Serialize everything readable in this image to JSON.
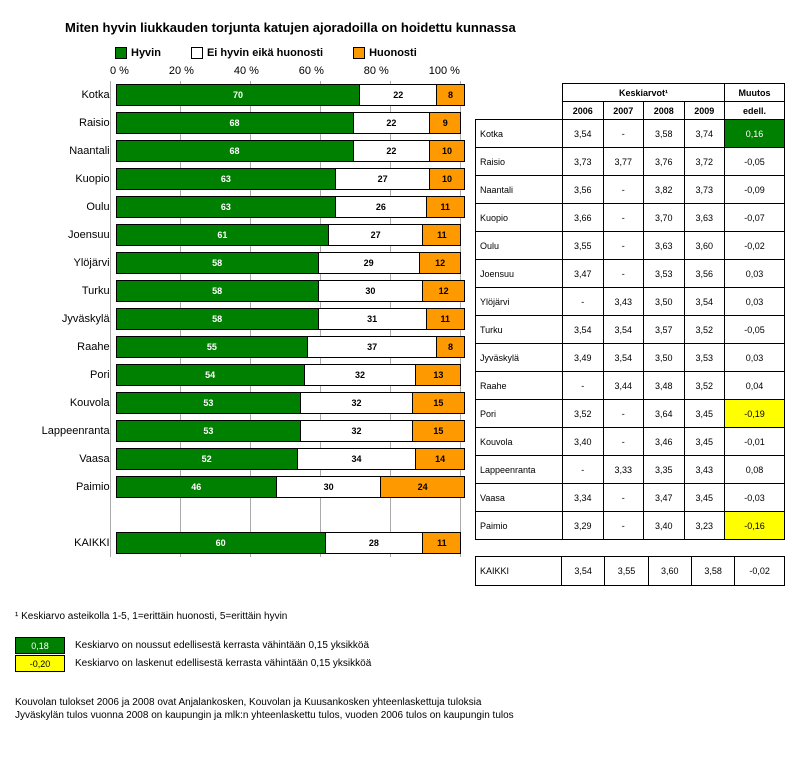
{
  "title": "Miten hyvin liukkauden torjunta katujen ajoradoilla on hoidettu kunnassa",
  "colors": {
    "green": "#008000",
    "white": "#ffffff",
    "orange": "#ff9900",
    "yellow": "#ffff00"
  },
  "legend": {
    "items": [
      {
        "label": "Hyvin",
        "color": "#008000"
      },
      {
        "label": "Ei hyvin eikä huonosti",
        "color": "#ffffff"
      },
      {
        "label": "Huonosti",
        "color": "#ff9900"
      }
    ]
  },
  "axis": {
    "ticks": [
      "0 %",
      "20 %",
      "40 %",
      "60 %",
      "80 %",
      "100 %"
    ],
    "positions": [
      0,
      20,
      40,
      60,
      80,
      100
    ]
  },
  "rows": [
    {
      "name": "Kotka",
      "values": [
        70,
        22,
        8
      ]
    },
    {
      "name": "Raisio",
      "values": [
        68,
        22,
        9
      ]
    },
    {
      "name": "Naantali",
      "values": [
        68,
        22,
        10
      ]
    },
    {
      "name": "Kuopio",
      "values": [
        63,
        27,
        10
      ]
    },
    {
      "name": "Oulu",
      "values": [
        63,
        26,
        11
      ]
    },
    {
      "name": "Joensuu",
      "values": [
        61,
        27,
        11
      ]
    },
    {
      "name": "Ylöjärvi",
      "values": [
        58,
        29,
        12
      ]
    },
    {
      "name": "Turku",
      "values": [
        58,
        30,
        12
      ]
    },
    {
      "name": "Jyväskylä",
      "values": [
        58,
        31,
        11
      ]
    },
    {
      "name": "Raahe",
      "values": [
        55,
        37,
        8
      ]
    },
    {
      "name": "Pori",
      "values": [
        54,
        32,
        13
      ]
    },
    {
      "name": "Kouvola",
      "values": [
        53,
        32,
        15
      ]
    },
    {
      "name": "Lappeenranta",
      "values": [
        53,
        32,
        15
      ]
    },
    {
      "name": "Vaasa",
      "values": [
        52,
        34,
        14
      ]
    },
    {
      "name": "Paimio",
      "values": [
        46,
        30,
        24
      ]
    }
  ],
  "kaikki": {
    "name": "KAIKKI",
    "values": [
      60,
      28,
      11
    ]
  },
  "table": {
    "header_group1": "Keskiarvot¹",
    "header_group2": "Muutos",
    "cols": [
      "2006",
      "2007",
      "2008",
      "2009",
      "edell."
    ],
    "rows": [
      {
        "name": "Kotka",
        "cells": [
          "3,54",
          "-",
          "3,58",
          "3,74",
          "0,16"
        ],
        "hl": "green"
      },
      {
        "name": "Raisio",
        "cells": [
          "3,73",
          "3,77",
          "3,76",
          "3,72",
          "-0,05"
        ],
        "hl": null
      },
      {
        "name": "Naantali",
        "cells": [
          "3,56",
          "-",
          "3,82",
          "3,73",
          "-0,09"
        ],
        "hl": null
      },
      {
        "name": "Kuopio",
        "cells": [
          "3,66",
          "-",
          "3,70",
          "3,63",
          "-0,07"
        ],
        "hl": null
      },
      {
        "name": "Oulu",
        "cells": [
          "3,55",
          "-",
          "3,63",
          "3,60",
          "-0,02"
        ],
        "hl": null
      },
      {
        "name": "Joensuu",
        "cells": [
          "3,47",
          "-",
          "3,53",
          "3,56",
          "0,03"
        ],
        "hl": null
      },
      {
        "name": "Ylöjärvi",
        "cells": [
          "-",
          "3,43",
          "3,50",
          "3,54",
          "0,03"
        ],
        "hl": null
      },
      {
        "name": "Turku",
        "cells": [
          "3,54",
          "3,54",
          "3,57",
          "3,52",
          "-0,05"
        ],
        "hl": null
      },
      {
        "name": "Jyväskylä",
        "cells": [
          "3,49",
          "3,54",
          "3,50",
          "3,53",
          "0,03"
        ],
        "hl": null
      },
      {
        "name": "Raahe",
        "cells": [
          "-",
          "3,44",
          "3,48",
          "3,52",
          "0,04"
        ],
        "hl": null
      },
      {
        "name": "Pori",
        "cells": [
          "3,52",
          "-",
          "3,64",
          "3,45",
          "-0,19"
        ],
        "hl": "yellow"
      },
      {
        "name": "Kouvola",
        "cells": [
          "3,40",
          "-",
          "3,46",
          "3,45",
          "-0,01"
        ],
        "hl": null
      },
      {
        "name": "Lappeenranta",
        "cells": [
          "-",
          "3,33",
          "3,35",
          "3,43",
          "0,08"
        ],
        "hl": null
      },
      {
        "name": "Vaasa",
        "cells": [
          "3,34",
          "-",
          "3,47",
          "3,45",
          "-0,03"
        ],
        "hl": null
      },
      {
        "name": "Paimio",
        "cells": [
          "3,29",
          "-",
          "3,40",
          "3,23",
          "-0,16"
        ],
        "hl": "yellow"
      }
    ],
    "kaikki": {
      "name": "KAIKKI",
      "cells": [
        "3,54",
        "3,55",
        "3,60",
        "3,58",
        "-0,02"
      ]
    }
  },
  "footnote1": "¹ Keskiarvo asteikolla 1-5, 1=erittäin huonosti, 5=erittäin hyvin",
  "explain": [
    {
      "value": "0,18",
      "color": "#008000",
      "fg": "#ffffff",
      "text": "Keskiarvo on noussut edellisestä kerrasta vähintään 0,15 yksikköä"
    },
    {
      "value": "-0,20",
      "color": "#ffff00",
      "fg": "#000000",
      "text": "Keskiarvo on laskenut edellisestä kerrasta vähintään 0,15 yksikköä"
    }
  ],
  "final_notes": [
    "Kouvolan tulokset 2006 ja 2008 ovat Anjalankosken, Kouvolan ja Kuusankosken yhteenlaskettuja tuloksia",
    "Jyväskylän tulos vuonna 2008 on kaupungin ja mlk:n yhteenlaskettu tulos, vuoden 2006 tulos on kaupungin tulos"
  ]
}
